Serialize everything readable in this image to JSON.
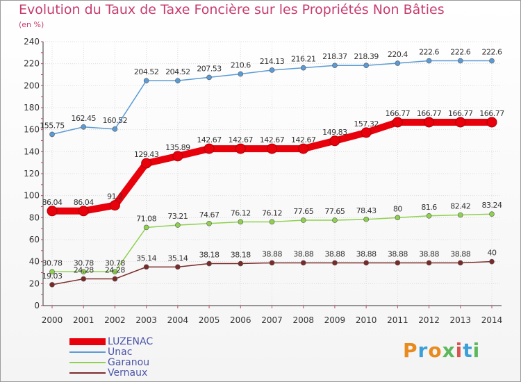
{
  "chart_data": {
    "type": "line",
    "title": "Evolution du Taux de Taxe Foncière sur les Propriétés Non Bâties",
    "ylabel": "(en %)",
    "xlabel": "",
    "x": [
      "2000",
      "2001",
      "2002",
      "2003",
      "2004",
      "2005",
      "2006",
      "2007",
      "2008",
      "2009",
      "2010",
      "2011",
      "2012",
      "2013",
      "2014"
    ],
    "ylim": [
      0,
      240
    ],
    "yticks": [
      0,
      20,
      40,
      60,
      80,
      100,
      120,
      140,
      160,
      180,
      200,
      220,
      240
    ],
    "grid": true,
    "series": [
      {
        "name": "LUZENAC",
        "color": "#e8000b",
        "values": [
          86.04,
          86.04,
          91.2,
          129.43,
          135.89,
          142.67,
          142.67,
          142.67,
          142.67,
          149.83,
          157.32,
          166.77,
          166.77,
          166.77,
          166.77
        ],
        "labels": [
          "86.04",
          "86.04",
          "91.2",
          "129.43",
          "135.89",
          "142.67",
          "142.67",
          "142.67",
          "142.67",
          "149.83",
          "157.32",
          "166.77",
          "166.77",
          "166.77",
          "166.77"
        ]
      },
      {
        "name": "Unac",
        "color": "#5b9bd5",
        "values": [
          155.75,
          162.45,
          160.52,
          204.52,
          204.52,
          207.53,
          210.6,
          214.13,
          216.21,
          218.37,
          218.39,
          220.4,
          222.6,
          222.6,
          222.6
        ],
        "labels": [
          "155.75",
          "162.45",
          "160.52",
          "204.52",
          "204.52",
          "207.53",
          "210.6",
          "214.13",
          "216.21",
          "218.37",
          "218.39",
          "220.4",
          "222.6",
          "222.6",
          "222.6"
        ]
      },
      {
        "name": "Garanou",
        "color": "#8fd14f",
        "values": [
          30.78,
          30.78,
          30.78,
          71.08,
          73.21,
          74.67,
          76.12,
          76.12,
          77.65,
          77.65,
          78.43,
          80,
          81.6,
          82.42,
          83.24
        ],
        "labels": [
          "30.78",
          "30.78",
          "30.78",
          "71.08",
          "73.21",
          "74.67",
          "76.12",
          "76.12",
          "77.65",
          "77.65",
          "78.43",
          "80",
          "81.6",
          "82.42",
          "83.24"
        ]
      },
      {
        "name": "Vernaux",
        "color": "#7a2a2a",
        "values": [
          19.03,
          24.28,
          24.28,
          35.14,
          35.14,
          38.18,
          38.18,
          38.88,
          38.88,
          38.88,
          38.88,
          38.88,
          38.88,
          38.88,
          40
        ],
        "labels": [
          "19.03",
          "24.28",
          "24.28",
          "35.14",
          "35.14",
          "38.18",
          "38.18",
          "38.88",
          "38.88",
          "38.88",
          "38.88",
          "38.88",
          "38.88",
          "38.88",
          "40"
        ]
      }
    ]
  },
  "logo": {
    "text": "Proxiti",
    "colors": [
      "#e98a1e",
      "#3aa0d8",
      "#e98a1e",
      "#5cb85c",
      "#d9534f",
      "#3aa0d8",
      "#5cb85c"
    ]
  }
}
